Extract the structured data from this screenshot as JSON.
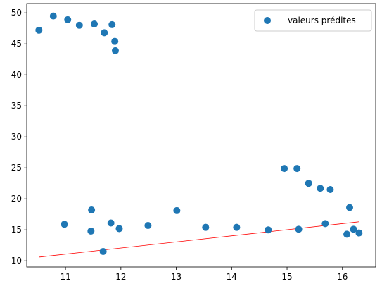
{
  "chart_data": {
    "type": "scatter",
    "title": "",
    "xlabel": "",
    "ylabel": "",
    "xlim": [
      10.3,
      16.6
    ],
    "ylim": [
      9.0,
      51.5
    ],
    "xticks": [
      11,
      12,
      13,
      14,
      15,
      16
    ],
    "yticks": [
      10,
      15,
      20,
      25,
      30,
      35,
      40,
      45,
      50
    ],
    "grid": false,
    "legend_position": "top-right",
    "series": [
      {
        "name": "valeurs prédites",
        "kind": "scatter",
        "color": "#1f77b4",
        "points": [
          [
            10.52,
            47.2
          ],
          [
            10.78,
            49.5
          ],
          [
            11.04,
            48.9
          ],
          [
            11.25,
            48.0
          ],
          [
            11.52,
            48.2
          ],
          [
            11.7,
            46.8
          ],
          [
            11.84,
            48.1
          ],
          [
            11.89,
            45.4
          ],
          [
            11.9,
            43.9
          ],
          [
            10.98,
            15.9
          ],
          [
            11.47,
            18.2
          ],
          [
            11.46,
            14.8
          ],
          [
            11.68,
            11.5
          ],
          [
            11.82,
            16.1
          ],
          [
            11.97,
            15.2
          ],
          [
            12.49,
            15.7
          ],
          [
            13.01,
            18.1
          ],
          [
            13.53,
            15.4
          ],
          [
            14.09,
            15.4
          ],
          [
            14.66,
            15.0
          ],
          [
            14.95,
            24.9
          ],
          [
            15.18,
            24.9
          ],
          [
            15.21,
            15.1
          ],
          [
            15.39,
            22.5
          ],
          [
            15.6,
            21.7
          ],
          [
            15.69,
            16.0
          ],
          [
            15.78,
            21.5
          ],
          [
            16.08,
            14.3
          ],
          [
            16.13,
            18.6
          ],
          [
            16.2,
            15.1
          ],
          [
            16.3,
            14.5
          ]
        ]
      },
      {
        "name": "",
        "kind": "line",
        "color": "#ff0000",
        "points": [
          [
            10.52,
            10.6
          ],
          [
            16.3,
            16.3
          ]
        ]
      }
    ]
  }
}
